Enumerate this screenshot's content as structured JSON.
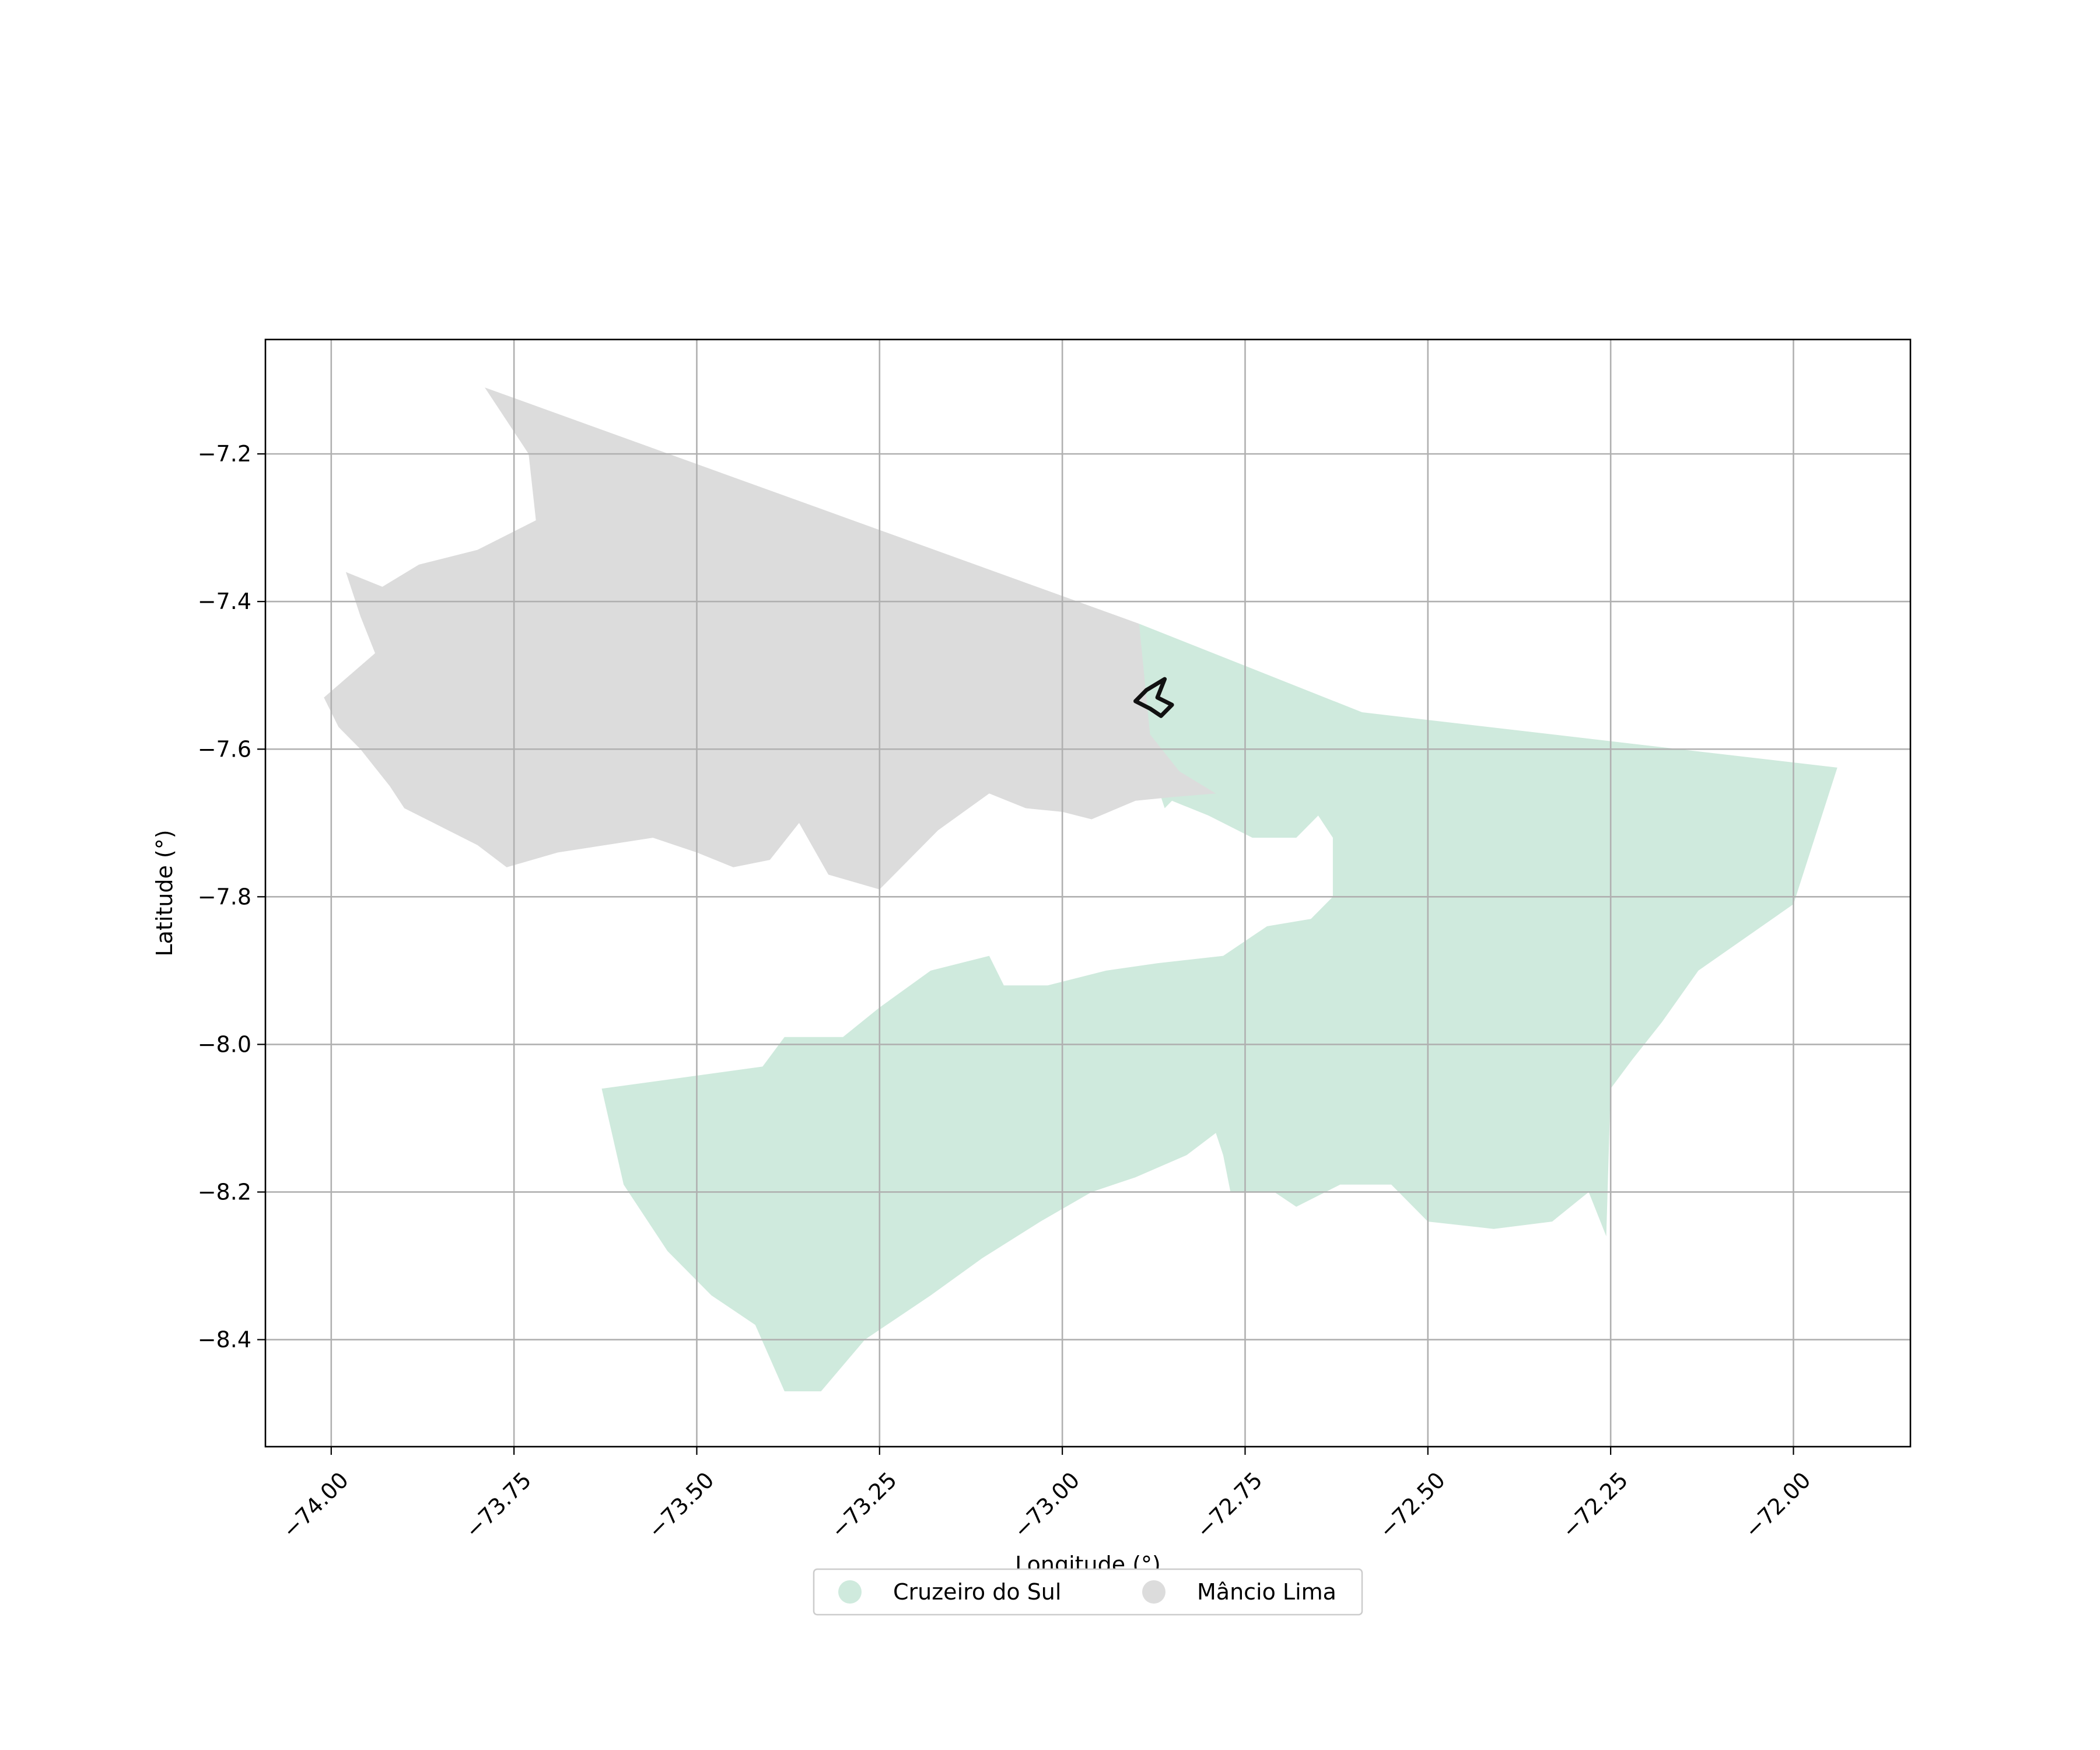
{
  "chart_data": {
    "type": "map",
    "xlabel": "Longitude (°)",
    "ylabel": "Latitude (°)",
    "xlim": [
      -74.09,
      -71.84
    ],
    "ylim": [
      -8.545,
      -7.045
    ],
    "grid": true,
    "x_ticks": [
      -74.0,
      -73.75,
      -73.5,
      -73.25,
      -73.0,
      -72.75,
      -72.5,
      -72.25,
      -72.0
    ],
    "x_tick_labels": [
      "−74.00",
      "−73.75",
      "−73.50",
      "−73.25",
      "−73.00",
      "−72.75",
      "−72.50",
      "−72.25",
      "−72.00"
    ],
    "y_ticks": [
      -7.2,
      -7.4,
      -7.6,
      -7.8,
      -8.0,
      -8.2,
      -8.4
    ],
    "y_tick_labels": [
      "−7.2",
      "−7.4",
      "−7.6",
      "−7.8",
      "−8.0",
      "−8.2",
      "−8.4"
    ],
    "legend_position": "bottom-center",
    "colors": {
      "cruzeiro": "#cfeadd",
      "mancio": "#dcdcdc",
      "outline": "#111111"
    },
    "regions": [
      {
        "name": "Cruzeiro do Sul",
        "color": "#cfeadd",
        "polygon": [
          [
            -72.895,
            -7.43
          ],
          [
            -72.59,
            -7.55
          ],
          [
            -71.94,
            -7.625
          ],
          [
            -72.0,
            -7.81
          ],
          [
            -72.13,
            -7.9
          ],
          [
            -72.18,
            -7.97
          ],
          [
            -72.22,
            -8.02
          ],
          [
            -72.25,
            -8.06
          ],
          [
            -72.256,
            -8.26
          ],
          [
            -72.28,
            -8.2
          ],
          [
            -72.33,
            -8.24
          ],
          [
            -72.41,
            -8.25
          ],
          [
            -72.5,
            -8.24
          ],
          [
            -72.55,
            -8.19
          ],
          [
            -72.62,
            -8.19
          ],
          [
            -72.68,
            -8.22
          ],
          [
            -72.71,
            -8.2
          ],
          [
            -72.77,
            -8.2
          ],
          [
            -72.78,
            -8.15
          ],
          [
            -72.79,
            -8.12
          ],
          [
            -72.83,
            -8.15
          ],
          [
            -72.9,
            -8.18
          ],
          [
            -72.96,
            -8.2
          ],
          [
            -73.03,
            -8.24
          ],
          [
            -73.11,
            -8.29
          ],
          [
            -73.18,
            -8.34
          ],
          [
            -73.27,
            -8.4
          ],
          [
            -73.33,
            -8.47
          ],
          [
            -73.38,
            -8.47
          ],
          [
            -73.42,
            -8.38
          ],
          [
            -73.48,
            -8.34
          ],
          [
            -73.54,
            -8.28
          ],
          [
            -73.6,
            -8.19
          ],
          [
            -73.63,
            -8.06
          ],
          [
            -73.41,
            -8.03
          ],
          [
            -73.38,
            -7.99
          ],
          [
            -73.3,
            -7.99
          ],
          [
            -73.25,
            -7.95
          ],
          [
            -73.18,
            -7.9
          ],
          [
            -73.1,
            -7.88
          ],
          [
            -73.08,
            -7.92
          ],
          [
            -73.02,
            -7.92
          ],
          [
            -72.94,
            -7.9
          ],
          [
            -72.87,
            -7.89
          ],
          [
            -72.78,
            -7.88
          ],
          [
            -72.72,
            -7.84
          ],
          [
            -72.66,
            -7.83
          ],
          [
            -72.63,
            -7.8
          ],
          [
            -72.63,
            -7.72
          ],
          [
            -72.65,
            -7.69
          ],
          [
            -72.68,
            -7.72
          ],
          [
            -72.74,
            -7.72
          ],
          [
            -72.8,
            -7.69
          ],
          [
            -72.85,
            -7.67
          ],
          [
            -72.86,
            -7.68
          ],
          [
            -72.89,
            -7.59
          ]
        ]
      },
      {
        "name": "Mâncio Lima",
        "color": "#dcdcdc",
        "polygon": [
          [
            -73.79,
            -7.11
          ],
          [
            -72.895,
            -7.43
          ],
          [
            -72.88,
            -7.58
          ],
          [
            -72.84,
            -7.63
          ],
          [
            -72.79,
            -7.66
          ],
          [
            -72.85,
            -7.665
          ],
          [
            -72.9,
            -7.67
          ],
          [
            -72.96,
            -7.695
          ],
          [
            -73.0,
            -7.685
          ],
          [
            -73.05,
            -7.68
          ],
          [
            -73.1,
            -7.66
          ],
          [
            -73.17,
            -7.71
          ],
          [
            -73.25,
            -7.79
          ],
          [
            -73.32,
            -7.77
          ],
          [
            -73.36,
            -7.7
          ],
          [
            -73.4,
            -7.75
          ],
          [
            -73.45,
            -7.76
          ],
          [
            -73.5,
            -7.74
          ],
          [
            -73.56,
            -7.72
          ],
          [
            -73.69,
            -7.74
          ],
          [
            -73.76,
            -7.76
          ],
          [
            -73.8,
            -7.73
          ],
          [
            -73.86,
            -7.7
          ],
          [
            -73.9,
            -7.68
          ],
          [
            -73.92,
            -7.65
          ],
          [
            -73.96,
            -7.6
          ],
          [
            -73.99,
            -7.57
          ],
          [
            -74.01,
            -7.53
          ],
          [
            -73.94,
            -7.47
          ],
          [
            -73.96,
            -7.42
          ],
          [
            -73.98,
            -7.36
          ],
          [
            -73.93,
            -7.38
          ],
          [
            -73.88,
            -7.35
          ],
          [
            -73.8,
            -7.33
          ],
          [
            -73.72,
            -7.29
          ],
          [
            -73.73,
            -7.2
          ]
        ]
      }
    ],
    "marker": {
      "outline": [
        [
          -72.86,
          -7.505
        ],
        [
          -72.87,
          -7.53
        ],
        [
          -72.85,
          -7.54
        ],
        [
          -72.865,
          -7.555
        ],
        [
          -72.88,
          -7.545
        ],
        [
          -72.9,
          -7.535
        ],
        [
          -72.885,
          -7.52
        ],
        [
          -72.86,
          -7.505
        ]
      ]
    }
  },
  "legend": {
    "items": [
      {
        "label": "Cruzeiro do Sul",
        "color": "#cfeadd"
      },
      {
        "label": "Mâncio Lima",
        "color": "#dcdcdc"
      }
    ]
  }
}
